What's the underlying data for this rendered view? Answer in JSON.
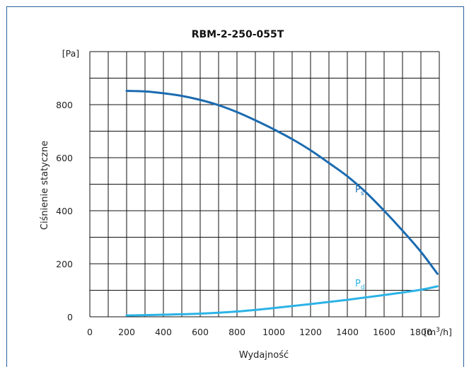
{
  "chart_data": {
    "type": "line",
    "title": "RBM-2-250-055T",
    "xlabel": "Wydajność",
    "ylabel": "Ciśnienie statyczne",
    "y_unit": "[Pa]",
    "x_unit": "[m³/h]",
    "xlim": [
      0,
      1900
    ],
    "ylim": [
      0,
      1000
    ],
    "x_ticks": [
      0,
      200,
      400,
      600,
      800,
      1000,
      1200,
      1400,
      1600,
      1800
    ],
    "y_ticks": [
      0,
      200,
      400,
      600,
      800
    ],
    "grid": true,
    "series": [
      {
        "name": "Ps",
        "label_main": "P",
        "label_sub": "s",
        "color": "#1b6bb0",
        "x": [
          200,
          300,
          400,
          500,
          600,
          700,
          800,
          900,
          1000,
          1100,
          1200,
          1300,
          1400,
          1500,
          1600,
          1700,
          1800,
          1890
        ],
        "y": [
          852,
          850,
          843,
          833,
          818,
          798,
          772,
          741,
          707,
          670,
          628,
          580,
          530,
          470,
          400,
          325,
          245,
          162
        ]
      },
      {
        "name": "Pd",
        "label_main": "P",
        "label_sub": "d",
        "color": "#2bb3e6",
        "x": [
          200,
          400,
          600,
          800,
          1000,
          1200,
          1400,
          1600,
          1800,
          1890
        ],
        "y": [
          5,
          8,
          12,
          20,
          33,
          48,
          64,
          82,
          102,
          115
        ]
      }
    ]
  }
}
